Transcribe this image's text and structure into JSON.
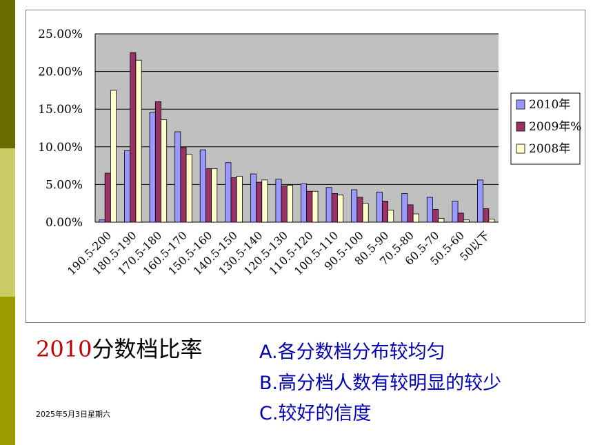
{
  "sidebar": {
    "colors": [
      "#6b6b00",
      "#cccc66",
      "#9c9c00"
    ]
  },
  "chart_data": {
    "type": "bar",
    "categories": [
      "190.5-200",
      "180.5-190",
      "170.5-180",
      "160.5-170",
      "150.5-160",
      "140.5-150",
      "130.5-140",
      "120.5-130",
      "110.5-120",
      "100.5-110",
      "90.5-100",
      "80.5-90",
      "70.5-80",
      "60.5-70",
      "50.5-60",
      "50以下"
    ],
    "series": [
      {
        "name": "2010年",
        "color": "#9999ff",
        "values": [
          0.3,
          9.5,
          14.6,
          12.0,
          9.6,
          7.9,
          6.4,
          5.7,
          5.1,
          4.6,
          4.3,
          4.0,
          3.8,
          3.3,
          2.8,
          5.6
        ]
      },
      {
        "name": "2009年%",
        "color": "#993366",
        "values": [
          6.5,
          22.5,
          16.0,
          9.9,
          7.1,
          5.9,
          5.3,
          4.8,
          4.1,
          3.8,
          3.3,
          2.8,
          2.3,
          1.7,
          1.2,
          1.8
        ]
      },
      {
        "name": "2008年",
        "color": "#ffffcc",
        "values": [
          17.5,
          21.5,
          13.6,
          9.0,
          7.1,
          6.1,
          5.6,
          4.9,
          4.1,
          3.6,
          2.5,
          1.6,
          1.1,
          0.5,
          0.3,
          0.4
        ]
      }
    ],
    "yticks": [
      "25.00%",
      "20.00%",
      "15.00%",
      "10.00%",
      "5.00%",
      "0.00%"
    ],
    "ylim": [
      0,
      25
    ],
    "grid": true,
    "plot_background": "#c0c0c0",
    "legend_position": "right",
    "xlabel": "",
    "ylabel": ""
  },
  "heading": {
    "year": "2010",
    "rest": "分数档比率"
  },
  "notes": [
    "A.各分数档分布较均匀",
    "B.高分档人数有较明显的较少",
    "C.较好的信度"
  ],
  "date": "2025年5月3日星期六"
}
